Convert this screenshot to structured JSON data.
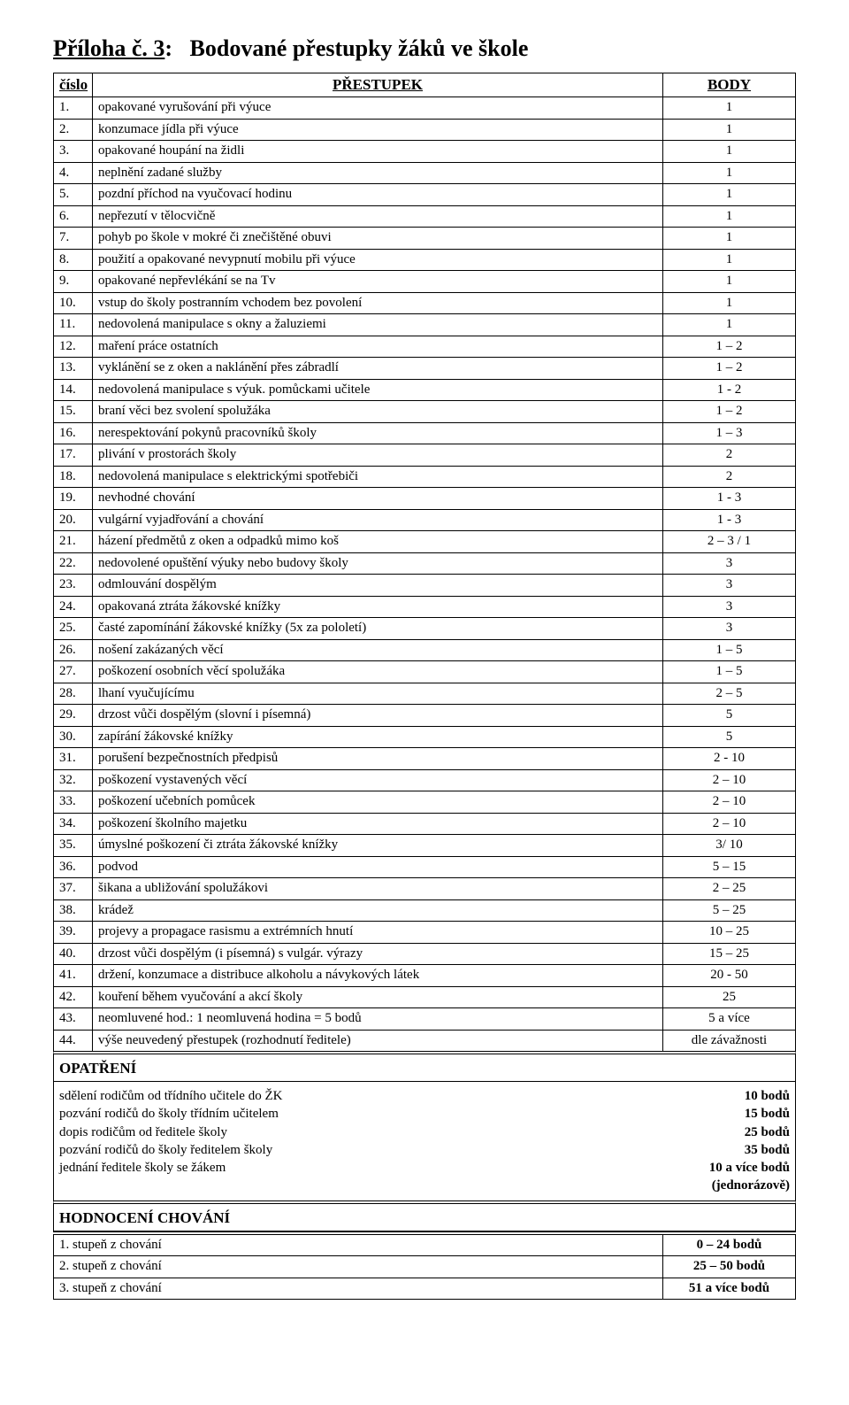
{
  "title_prefix": "Příloha č. 3",
  "title_main": "Bodované přestupky žáků ve škole",
  "table": {
    "headers": {
      "num": "číslo",
      "desc": "PŘESTUPEK",
      "body": "BODY"
    },
    "rows": [
      {
        "n": "1.",
        "d": "opakované vyrušování při výuce",
        "b": "1"
      },
      {
        "n": "2.",
        "d": "konzumace jídla při výuce",
        "b": "1"
      },
      {
        "n": "3.",
        "d": "opakované houpání na židli",
        "b": "1"
      },
      {
        "n": "4.",
        "d": "neplnění zadané služby",
        "b": "1"
      },
      {
        "n": "5.",
        "d": "pozdní příchod na vyučovací hodinu",
        "b": "1"
      },
      {
        "n": "6.",
        "d": "nepřezutí v tělocvičně",
        "b": "1"
      },
      {
        "n": "7.",
        "d": "pohyb po škole v mokré či znečištěné obuvi",
        "b": "1"
      },
      {
        "n": "8.",
        "d": "použití a opakované nevypnutí mobilu při výuce",
        "b": "1"
      },
      {
        "n": "9.",
        "d": "opakované nepřevlékání se na Tv",
        "b": "1"
      },
      {
        "n": "10.",
        "d": "vstup do školy postranním vchodem bez povolení",
        "b": "1"
      },
      {
        "n": "11.",
        "d": "nedovolená manipulace s okny a žaluziemi",
        "b": "1"
      },
      {
        "n": "12.",
        "d": "maření práce ostatních",
        "b": "1 – 2"
      },
      {
        "n": "13.",
        "d": "vyklánění se z oken a naklánění přes zábradlí",
        "b": "1 – 2"
      },
      {
        "n": "14.",
        "d": "nedovolená manipulace s výuk. pomůckami učitele",
        "b": "1 - 2"
      },
      {
        "n": "15.",
        "d": "braní věci bez svolení spolužáka",
        "b": "1 – 2"
      },
      {
        "n": "16.",
        "d": "nerespektování pokynů pracovníků školy",
        "b": "1 – 3"
      },
      {
        "n": "17.",
        "d": "plivání v prostorách školy",
        "b": "2"
      },
      {
        "n": "18.",
        "d": "nedovolená manipulace s elektrickými spotřebiči",
        "b": "2"
      },
      {
        "n": "19.",
        "d": "nevhodné chování",
        "b": "1 - 3"
      },
      {
        "n": "20.",
        "d": "vulgární vyjadřování a chování",
        "b": "1 - 3"
      },
      {
        "n": "21.",
        "d": "házení předmětů z oken  a odpadků mimo koš",
        "b": "2 – 3 / 1"
      },
      {
        "n": "22.",
        "d": "nedovolené opuštění výuky nebo budovy školy",
        "b": "3"
      },
      {
        "n": "23.",
        "d": "odmlouvání dospělým",
        "b": "3"
      },
      {
        "n": "24.",
        "d": "opakovaná ztráta žákovské knížky",
        "b": "3"
      },
      {
        "n": "25.",
        "d": "časté zapomínání žákovské knížky (5x za pololetí)",
        "b": "3"
      },
      {
        "n": "26.",
        "d": "nošení zakázaných věcí",
        "b": "1 – 5"
      },
      {
        "n": "27.",
        "d": "poškození osobních věcí spolužáka",
        "b": "1 – 5"
      },
      {
        "n": "28.",
        "d": "lhaní vyučujícímu",
        "b": "2 – 5"
      },
      {
        "n": "29.",
        "d": "drzost vůči dospělým (slovní i písemná)",
        "b": "5"
      },
      {
        "n": "30.",
        "d": "zapírání žákovské knížky",
        "b": "5"
      },
      {
        "n": "31.",
        "d": "porušení bezpečnostních předpisů",
        "b": "2 - 10"
      },
      {
        "n": "32.",
        "d": "poškození vystavených věcí",
        "b": "2 – 10"
      },
      {
        "n": "33.",
        "d": "poškození učebních pomůcek",
        "b": "2 – 10"
      },
      {
        "n": "34.",
        "d": "poškození školního majetku",
        "b": "2 – 10"
      },
      {
        "n": "35.",
        "d": "úmyslné poškození  či ztráta žákovské knížky",
        "b": "3/ 10"
      },
      {
        "n": "36.",
        "d": "podvod",
        "b": "5 – 15"
      },
      {
        "n": "37.",
        "d": "šikana a ubližování spolužákovi",
        "b": "2 – 25"
      },
      {
        "n": "38.",
        "d": "krádež",
        "b": "5 – 25"
      },
      {
        "n": "39.",
        "d": "projevy a propagace rasismu a extrémních hnutí",
        "b": "10 – 25"
      },
      {
        "n": "40.",
        "d": "drzost vůči dospělým (i písemná) s vulgár. výrazy",
        "b": "15 – 25"
      },
      {
        "n": "41.",
        "d": "držení, konzumace a distribuce alkoholu a návykových látek",
        "b": "20 - 50"
      },
      {
        "n": "42.",
        "d": "kouření během vyučování a akcí školy",
        "b": "25"
      },
      {
        "n": "43.",
        "d": "neomluvené hod.: 1 neomluvená hodina = 5 bodů",
        "b": "5 a více"
      },
      {
        "n": "44.",
        "d": "výše neuvedený přestupek (rozhodnutí ředitele)",
        "b": "dle závažnosti"
      }
    ]
  },
  "opatreni": {
    "heading": "OPATŘENÍ",
    "rows": [
      {
        "label": "sdělení rodičům od třídního učitele do ŽK",
        "value": "10 bodů"
      },
      {
        "label": "pozvání rodičů do školy třídním učitelem",
        "value": "15 bodů"
      },
      {
        "label": "dopis rodičům od ředitele školy",
        "value": "25 bodů"
      },
      {
        "label": "pozvání rodičů do školy ředitelem školy",
        "value": "35 bodů"
      },
      {
        "label": "jednání ředitele školy se žákem",
        "value": "10 a více bodů\n(jednorázově)"
      }
    ]
  },
  "hodnoceni": {
    "heading": "HODNOCENÍ CHOVÁNÍ",
    "rows": [
      {
        "label": "1. stupeň z chování",
        "value": "0 – 24 bodů"
      },
      {
        "label": "2. stupeň z chování",
        "value": "25 – 50 bodů"
      },
      {
        "label": "3. stupeň z chování",
        "value": "51 a více bodů"
      }
    ]
  }
}
